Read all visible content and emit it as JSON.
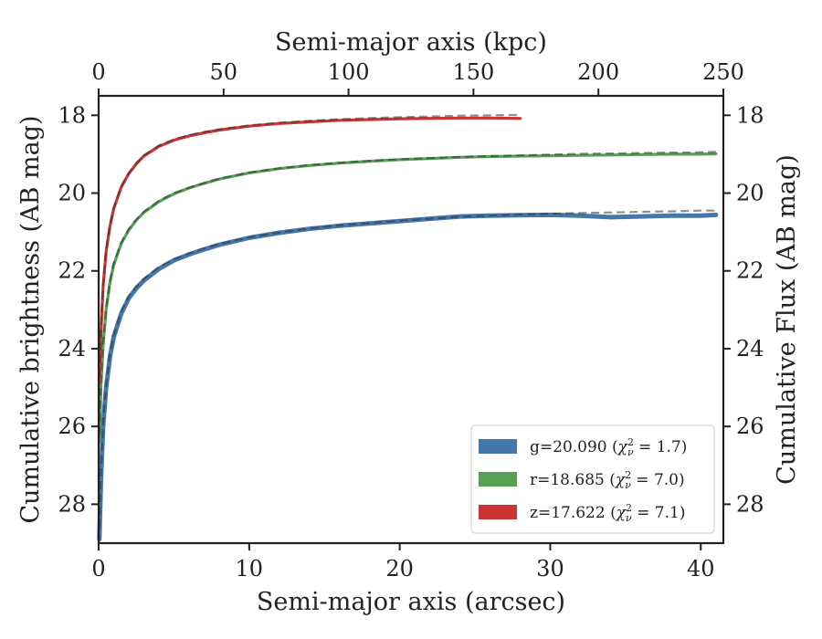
{
  "chart_data": {
    "type": "line",
    "xlabel": "Semi-major axis (arcsec)",
    "x2label": "Semi-major axis (kpc)",
    "ylabel": "Cumulative brightness (AB mag)",
    "y2label": "Cumulative Flux (AB mag)",
    "xlim": [
      0,
      41.5
    ],
    "x2lim": [
      0,
      250
    ],
    "ylim": [
      29.0,
      17.5
    ],
    "y_inverted": true,
    "xticks": [
      0,
      10,
      20,
      30,
      40
    ],
    "x2ticks": [
      0,
      50,
      100,
      150,
      200,
      250
    ],
    "yticks": [
      18,
      20,
      22,
      24,
      26,
      28
    ],
    "grid": false,
    "legend_position": "lower-right",
    "series": [
      {
        "name": "g=20.090 (χ²_ν = 1.7)",
        "legend_main": "g=20.090 (",
        "legend_chi": "χ",
        "legend_sup": "2",
        "legend_sub": "ν",
        "legend_rest": " = 1.7)",
        "band": "g",
        "color": "#4477aa",
        "x": [
          0.05,
          0.15,
          0.3,
          0.5,
          0.75,
          1.0,
          1.5,
          2.0,
          2.5,
          3.0,
          4.0,
          5.0,
          6.0,
          7.0,
          8.0,
          10.0,
          12.0,
          14.0,
          16.0,
          18.0,
          20.0,
          22.0,
          24.0,
          26.0,
          28.0,
          30.0,
          32.0,
          34.0,
          36.0,
          38.0,
          40.0,
          41.0
        ],
        "values": [
          28.9,
          27.4,
          26.0,
          25.0,
          24.2,
          23.7,
          23.1,
          22.7,
          22.45,
          22.25,
          21.95,
          21.73,
          21.58,
          21.45,
          21.33,
          21.15,
          21.02,
          20.92,
          20.84,
          20.78,
          20.72,
          20.66,
          20.6,
          20.58,
          20.57,
          20.56,
          20.58,
          20.62,
          20.6,
          20.58,
          20.58,
          20.56
        ],
        "model_x": [
          0.05,
          0.15,
          0.3,
          0.5,
          0.75,
          1.0,
          1.5,
          2.0,
          2.5,
          3.0,
          4.0,
          5.0,
          6.0,
          7.0,
          8.0,
          10.0,
          12.0,
          14.0,
          16.0,
          18.0,
          20.0,
          22.0,
          24.0,
          26.0,
          28.0,
          30.0,
          32.0,
          34.0,
          36.0,
          38.0,
          40.0,
          41.0
        ],
        "model_values": [
          28.6,
          27.2,
          25.9,
          24.95,
          24.15,
          23.65,
          23.05,
          22.65,
          22.4,
          22.2,
          21.9,
          21.7,
          21.55,
          21.42,
          21.31,
          21.14,
          21.01,
          20.91,
          20.83,
          20.77,
          20.71,
          20.66,
          20.61,
          20.58,
          20.55,
          20.53,
          20.51,
          20.5,
          20.48,
          20.47,
          20.45,
          20.45
        ]
      },
      {
        "name": "r=18.685 (χ²_ν = 7.0)",
        "legend_main": "r=18.685 (",
        "legend_chi": "χ",
        "legend_sup": "2",
        "legend_sub": "ν",
        "legend_rest": " = 7.0)",
        "band": "r",
        "color": "#55a055",
        "x": [
          0.05,
          0.15,
          0.3,
          0.5,
          0.75,
          1.0,
          1.5,
          2.0,
          2.5,
          3.0,
          4.0,
          5.0,
          6.0,
          7.0,
          8.0,
          10.0,
          12.0,
          14.0,
          16.0,
          18.0,
          20.0,
          22.0,
          24.0,
          26.0,
          28.0,
          30.0,
          32.0,
          34.0,
          36.0,
          38.0,
          40.0,
          41.0
        ],
        "values": [
          26.4,
          25.0,
          23.9,
          23.0,
          22.3,
          21.85,
          21.3,
          20.95,
          20.7,
          20.5,
          20.22,
          20.02,
          19.87,
          19.75,
          19.64,
          19.48,
          19.37,
          19.29,
          19.23,
          19.18,
          19.14,
          19.11,
          19.08,
          19.06,
          19.05,
          19.04,
          19.03,
          19.02,
          19.01,
          19.0,
          19.0,
          18.99
        ],
        "model_x": [
          0.05,
          0.15,
          0.3,
          0.5,
          0.75,
          1.0,
          1.5,
          2.0,
          2.5,
          3.0,
          4.0,
          5.0,
          6.0,
          7.0,
          8.0,
          10.0,
          12.0,
          14.0,
          16.0,
          18.0,
          20.0,
          22.0,
          24.0,
          26.0,
          28.0,
          30.0,
          32.0,
          34.0,
          36.0,
          38.0,
          40.0,
          41.0
        ],
        "model_values": [
          26.2,
          24.9,
          23.85,
          22.95,
          22.25,
          21.8,
          21.27,
          20.92,
          20.68,
          20.48,
          20.2,
          20.0,
          19.86,
          19.74,
          19.63,
          19.47,
          19.36,
          19.28,
          19.22,
          19.17,
          19.13,
          19.1,
          19.07,
          19.05,
          19.03,
          19.01,
          18.99,
          18.98,
          18.97,
          18.96,
          18.95,
          18.94
        ]
      },
      {
        "name": "z=17.622 (χ²_ν = 7.1)",
        "legend_main": "z=17.622 (",
        "legend_chi": "χ",
        "legend_sup": "2",
        "legend_sub": "ν",
        "legend_rest": " = 7.1)",
        "band": "z",
        "color": "#cc3333",
        "x": [
          0.05,
          0.15,
          0.3,
          0.5,
          0.75,
          1.0,
          1.5,
          2.0,
          2.5,
          3.0,
          4.0,
          5.0,
          6.0,
          7.0,
          8.0,
          10.0,
          12.0,
          14.0,
          16.0,
          18.0,
          20.0,
          22.0,
          24.0,
          26.0,
          28.0
        ],
        "values": [
          24.9,
          23.6,
          22.4,
          21.5,
          20.85,
          20.4,
          19.85,
          19.5,
          19.25,
          19.05,
          18.8,
          18.64,
          18.53,
          18.45,
          18.38,
          18.28,
          18.21,
          18.17,
          18.13,
          18.11,
          18.09,
          18.08,
          18.07,
          18.07,
          18.08
        ],
        "model_x": [
          0.05,
          0.15,
          0.3,
          0.5,
          0.75,
          1.0,
          1.5,
          2.0,
          2.5,
          3.0,
          4.0,
          5.0,
          6.0,
          7.0,
          8.0,
          10.0,
          12.0,
          14.0,
          16.0,
          18.0,
          20.0,
          22.0,
          24.0,
          26.0,
          28.0
        ],
        "model_values": [
          24.7,
          23.5,
          22.35,
          21.45,
          20.82,
          20.38,
          19.83,
          19.48,
          19.23,
          19.03,
          18.78,
          18.62,
          18.51,
          18.43,
          18.36,
          18.26,
          18.19,
          18.14,
          18.1,
          18.07,
          18.05,
          18.03,
          18.01,
          18.0,
          17.99
        ]
      }
    ]
  }
}
